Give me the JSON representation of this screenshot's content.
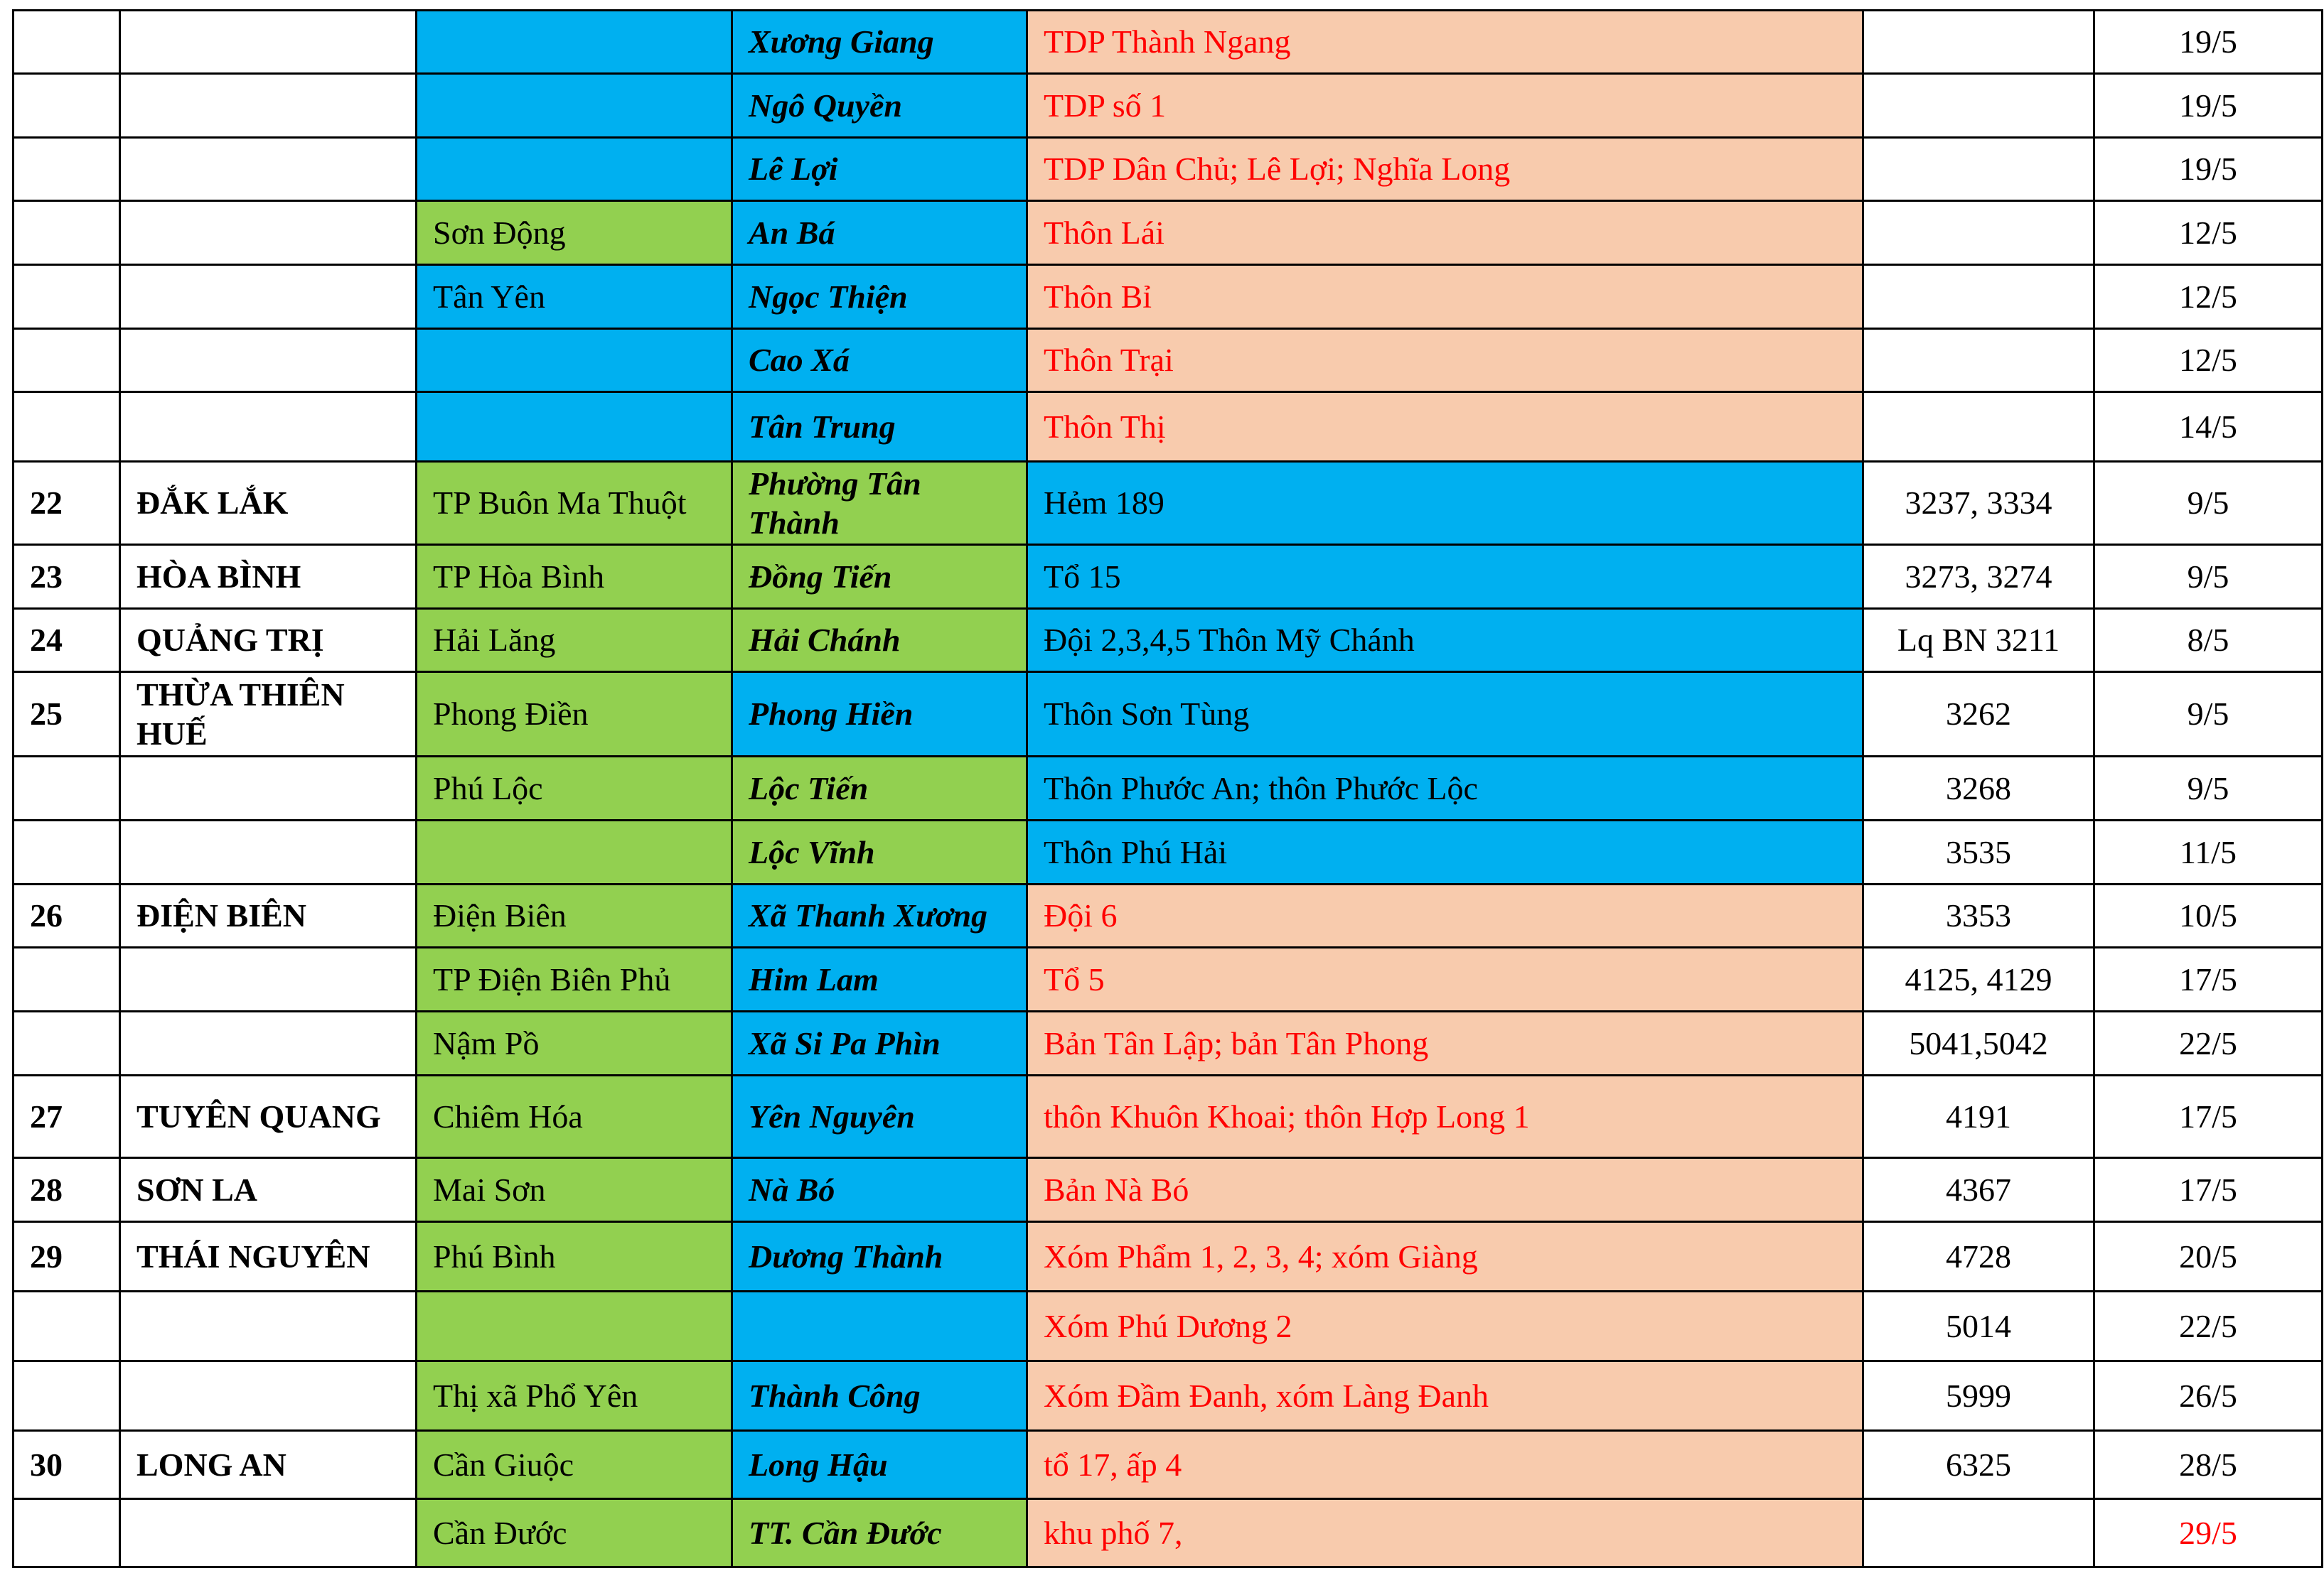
{
  "table": {
    "rows": [
      [
        "",
        "",
        "",
        "Xương Giang",
        "TDP Thành Ngang",
        "",
        "19/5"
      ],
      [
        "",
        "",
        "",
        "Ngô Quyền",
        "TDP số 1",
        "",
        "19/5"
      ],
      [
        "",
        "",
        "",
        "Lê Lợi",
        "TDP Dân Chủ;  Lê Lợi; Nghĩa Long",
        "",
        "19/5"
      ],
      [
        "",
        "",
        "Sơn Động",
        "An Bá",
        "Thôn Lái",
        "",
        "12/5"
      ],
      [
        "",
        "",
        "Tân Yên",
        "Ngọc Thiện",
        "Thôn Bỉ",
        "",
        "12/5"
      ],
      [
        "",
        "",
        "",
        "Cao Xá",
        "Thôn Trại",
        "",
        "12/5"
      ],
      [
        "",
        "",
        "",
        "Tân Trung",
        "Thôn Thị",
        "",
        "14/5"
      ],
      [
        "22",
        "ĐẮK LẮK",
        "TP Buôn Ma Thuột",
        "Phường Tân Thành",
        "Hẻm 189",
        "3237, 3334",
        "9/5"
      ],
      [
        "23",
        "HÒA BÌNH",
        "TP Hòa Bình",
        "Đồng Tiến",
        "Tổ 15",
        "3273, 3274",
        "9/5"
      ],
      [
        "24",
        "QUẢNG TRỊ",
        "Hải Lăng",
        "Hải Chánh",
        "Đội 2,3,4,5 Thôn Mỹ Chánh",
        "Lq BN 3211",
        "8/5"
      ],
      [
        "25",
        "THỪA THIÊN HUẾ",
        "Phong Điền",
        "Phong Hiền",
        "Thôn Sơn Tùng",
        "3262",
        "9/5"
      ],
      [
        "",
        "",
        "Phú Lộc",
        "Lộc Tiến",
        "Thôn Phước An; thôn Phước Lộc",
        "3268",
        "9/5"
      ],
      [
        "",
        "",
        "",
        "Lộc Vĩnh",
        "Thôn Phú Hải",
        "3535",
        "11/5"
      ],
      [
        "26",
        "ĐIỆN BIÊN",
        "Điện Biên",
        "Xã Thanh Xương",
        "Đội 6",
        "3353",
        "10/5"
      ],
      [
        "",
        "",
        "TP Điện Biên Phủ",
        "Him Lam",
        "Tổ 5",
        "4125, 4129",
        "17/5"
      ],
      [
        "",
        "",
        "Nậm Pồ",
        "Xã Si Pa Phìn",
        "Bản Tân Lập; bản Tân Phong",
        "5041,5042",
        "22/5"
      ],
      [
        "27",
        "TUYÊN QUANG",
        "Chiêm Hóa",
        "Yên Nguyên",
        "thôn Khuôn Khoai; thôn Hợp Long 1",
        "4191",
        "17/5"
      ],
      [
        "28",
        "SƠN LA",
        "Mai Sơn",
        "Nà Bó",
        "Bản Nà Bó",
        "4367",
        "17/5"
      ],
      [
        "29",
        "THÁI NGUYÊN",
        "Phú Bình",
        "Dương Thành",
        "Xóm Phẩm 1, 2, 3, 4; xóm Giàng",
        "4728",
        "20/5"
      ],
      [
        "",
        "",
        "",
        "",
        "Xóm Phú Dương 2",
        "5014",
        "22/5"
      ],
      [
        "",
        "",
        "Thị xã Phổ Yên",
        "Thành Công",
        "Xóm Đầm Đanh, xóm Làng Đanh",
        "5999",
        "26/5"
      ],
      [
        "30",
        "LONG AN",
        "Cần Giuộc",
        "Long Hậu",
        "tổ 17, ấp 4",
        "6325",
        "28/5"
      ],
      [
        "",
        "",
        "Cần Đước",
        "TT. Cần Đước",
        "khu phố 7,",
        "",
        "29/5"
      ]
    ],
    "fills": [
      [
        "b",
        "b",
        "p"
      ],
      [
        "b",
        "b",
        "p"
      ],
      [
        "b",
        "b",
        "p"
      ],
      [
        "g",
        "b",
        "p"
      ],
      [
        "b",
        "b",
        "p"
      ],
      [
        "b",
        "b",
        "p"
      ],
      [
        "b",
        "b",
        "p"
      ],
      [
        "g",
        "g",
        "b"
      ],
      [
        "g",
        "g",
        "b"
      ],
      [
        "g",
        "g",
        "b"
      ],
      [
        "g",
        "b",
        "b"
      ],
      [
        "g",
        "g",
        "b"
      ],
      [
        "g",
        "g",
        "b"
      ],
      [
        "g",
        "b",
        "p"
      ],
      [
        "g",
        "b",
        "p"
      ],
      [
        "g",
        "b",
        "p"
      ],
      [
        "g",
        "b",
        "p"
      ],
      [
        "g",
        "b",
        "p"
      ],
      [
        "g",
        "b",
        "p"
      ],
      [
        "g",
        "b",
        "p"
      ],
      [
        "g",
        "b",
        "p"
      ],
      [
        "g",
        "b",
        "p"
      ],
      [
        "g",
        "g",
        "p"
      ]
    ],
    "palette": {
      "g": "#92d050",
      "b": "#00b0f0",
      "p": "#f8cbad"
    },
    "accent": {
      "row": 22,
      "col": 6,
      "color": "#ff0000"
    }
  }
}
